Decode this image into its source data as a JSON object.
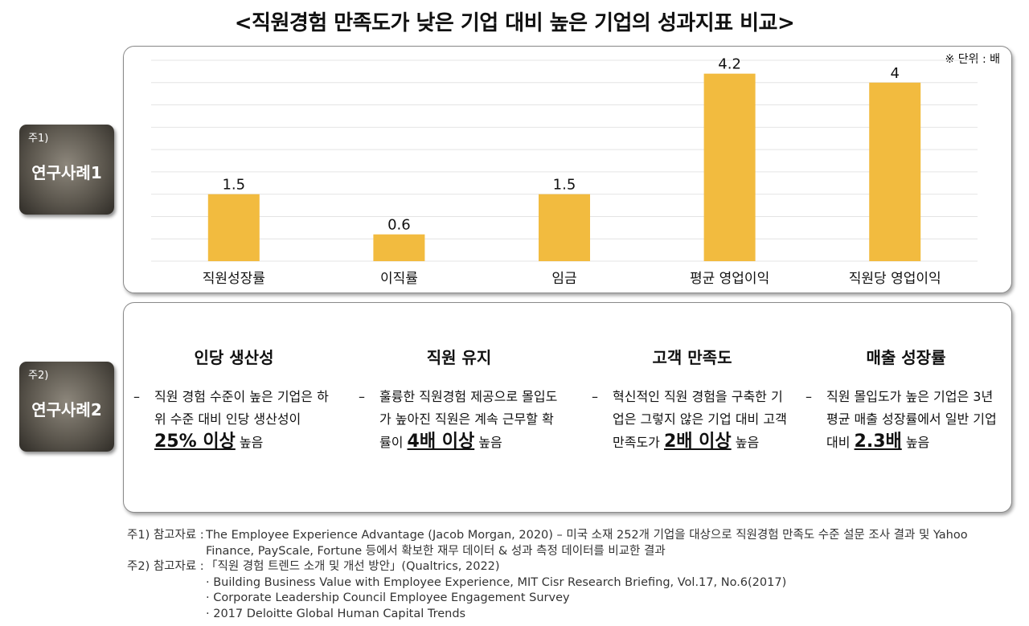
{
  "title": "<직원경험 만족도가 낮은 기업 대비 높은 기업의 성과지표 비교>",
  "study1": {
    "sup": "주1)",
    "name": "연구사례1"
  },
  "study2": {
    "sup": "주2)",
    "name": "연구사례2"
  },
  "chart_data": {
    "type": "bar",
    "unit_note": "※ 단위 : 배",
    "categories": [
      "직원성장률",
      "이직률",
      "임금",
      "평균 영업이익",
      "직원당 영업이익"
    ],
    "values": [
      1.5,
      0.6,
      1.5,
      4.2,
      4
    ],
    "data_labels": [
      "1.5",
      "0.6",
      "1.5",
      "4.2",
      "4"
    ],
    "ylim": [
      0,
      4.5
    ],
    "grid": true,
    "bar_color": "#f2bb3f"
  },
  "metrics": [
    {
      "title": "인당 생산성",
      "dash": "–",
      "text_before": "직원 경험 수준이 높은 기업은 하위 수준 대비 인당 생산성이 ",
      "emphasis": "25% 이상",
      "text_after": " 높음"
    },
    {
      "title": "직원 유지",
      "dash": "–",
      "text_before": "훌륭한 직원경험 제공으로 몰입도가 높아진 직원은 계속 근무할 확률이 ",
      "emphasis": "4배 이상",
      "text_after": " 높음"
    },
    {
      "title": "고객 만족도",
      "dash": "–",
      "text_before": "혁신적인 직원 경험을 구축한 기업은 그렇지 않은 기업 대비 고객만족도가 ",
      "emphasis": "2배 이상",
      "text_after": " 높음"
    },
    {
      "title": "매출 성장률",
      "dash": "–",
      "text_before": "직원 몰입도가 높은 기업은 3년 평균 매출 성장률에서 일반 기업 대비 ",
      "emphasis": "2.3배",
      "text_after": " 높음"
    }
  ],
  "notes": {
    "note1_label": "주1) 참고자료 :",
    "note1_line1": "The Employee Experience Advantage (Jacob Morgan, 2020) – 미국 소재 252개 기업을 대상으로 직원경험 만족도 수준 설문 조사 결과 및 Yahoo",
    "note1_line2": "Finance, PayScale, Fortune 등에서 확보한 재무 데이터 & 성과 측정 데이터를 비교한 결과",
    "note2_label": "주2) 참고자료 :",
    "note2_line1": "「직원 경험 트렌드 소개 및 개선 방안」(Qualtrics, 2022)",
    "note2_line2": "· Building Business Value with Employee Experience, MIT Cisr Research Briefing, Vol.17, No.6(2017)",
    "note2_line3": "· Corporate Leadership Council Employee Engagement Survey",
    "note2_line4": "· 2017 Deloitte Global Human Capital Trends"
  }
}
